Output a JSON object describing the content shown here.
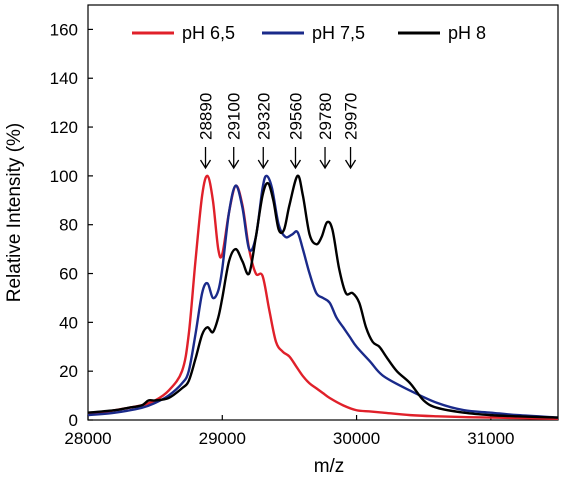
{
  "chart_data": {
    "type": "line",
    "xlabel": "m/z",
    "ylabel": "Relative Intensity (%)",
    "xlim": [
      28000,
      31500
    ],
    "ylim": [
      0,
      170
    ],
    "x_ticks": [
      28000,
      29000,
      30000,
      31000
    ],
    "x_tick_labels": [
      "28000",
      "29000",
      "30000",
      "31000"
    ],
    "y_ticks": [
      0,
      20,
      40,
      60,
      80,
      100,
      120,
      140,
      160
    ],
    "y_tick_labels": [
      "0",
      "20",
      "40",
      "60",
      "80",
      "100",
      "120",
      "140",
      "160"
    ],
    "grid": false,
    "legend_position": "top",
    "series": [
      {
        "name": "pH 6,5",
        "color": "#e0202a",
        "x": [
          28000,
          28200,
          28400,
          28500,
          28600,
          28700,
          28750,
          28800,
          28850,
          28890,
          28930,
          28970,
          29000,
          29050,
          29100,
          29150,
          29200,
          29250,
          29300,
          29350,
          29400,
          29450,
          29500,
          29550,
          29600,
          29650,
          29700,
          29750,
          29800,
          29900,
          30000,
          30100,
          30200,
          30400,
          30600,
          30800,
          31000,
          31200,
          31500
        ],
        "y": [
          2,
          4,
          6,
          8,
          12,
          20,
          35,
          65,
          92,
          100,
          90,
          70,
          68,
          85,
          96,
          88,
          70,
          60,
          59,
          45,
          32,
          28,
          26,
          22,
          18,
          15,
          13,
          11,
          9,
          6,
          4,
          3.5,
          3,
          2,
          1.5,
          1.2,
          1,
          0.8,
          0.5
        ]
      },
      {
        "name": "pH 7,5",
        "color": "#1a2a8a",
        "x": [
          28000,
          28200,
          28400,
          28500,
          28600,
          28700,
          28750,
          28800,
          28850,
          28890,
          28930,
          28970,
          29000,
          29050,
          29100,
          29150,
          29200,
          29250,
          29300,
          29330,
          29370,
          29420,
          29470,
          29520,
          29560,
          29600,
          29650,
          29700,
          29750,
          29800,
          29850,
          29900,
          29950,
          30000,
          30100,
          30200,
          30400,
          30600,
          30800,
          31000,
          31200,
          31500
        ],
        "y": [
          2,
          3,
          5,
          7,
          10,
          15,
          20,
          35,
          52,
          56,
          50,
          53,
          62,
          85,
          96,
          87,
          70,
          75,
          95,
          100,
          95,
          80,
          75,
          76,
          77,
          70,
          60,
          52,
          50,
          48,
          42,
          38,
          34,
          30,
          24,
          18,
          12,
          7,
          4,
          3,
          2,
          1
        ]
      },
      {
        "name": "pH 8",
        "color": "#000000",
        "x": [
          28000,
          28200,
          28300,
          28400,
          28450,
          28500,
          28600,
          28700,
          28750,
          28800,
          28850,
          28890,
          28930,
          28970,
          29000,
          29050,
          29100,
          29150,
          29200,
          29250,
          29300,
          29340,
          29380,
          29420,
          29460,
          29500,
          29560,
          29600,
          29650,
          29700,
          29740,
          29780,
          29820,
          29870,
          29920,
          29970,
          30020,
          30070,
          30120,
          30170,
          30220,
          30300,
          30400,
          30500,
          30600,
          30800,
          31000,
          31200,
          31500
        ],
        "y": [
          3,
          4,
          5,
          6,
          8,
          8,
          9,
          13,
          16,
          25,
          35,
          38,
          36,
          42,
          50,
          65,
          70,
          65,
          60,
          75,
          92,
          97,
          90,
          78,
          78,
          88,
          100,
          92,
          76,
          72,
          75,
          81,
          78,
          62,
          52,
          52,
          48,
          38,
          32,
          30,
          26,
          20,
          15,
          8,
          5,
          3,
          2,
          1.5,
          1
        ]
      }
    ],
    "annotations": [
      {
        "text": "28890",
        "x": 28890
      },
      {
        "text": "29100",
        "x": 29100
      },
      {
        "text": "29320",
        "x": 29320
      },
      {
        "text": "29560",
        "x": 29560
      },
      {
        "text": "29780",
        "x": 29780
      },
      {
        "text": "29970",
        "x": 29970
      }
    ]
  }
}
